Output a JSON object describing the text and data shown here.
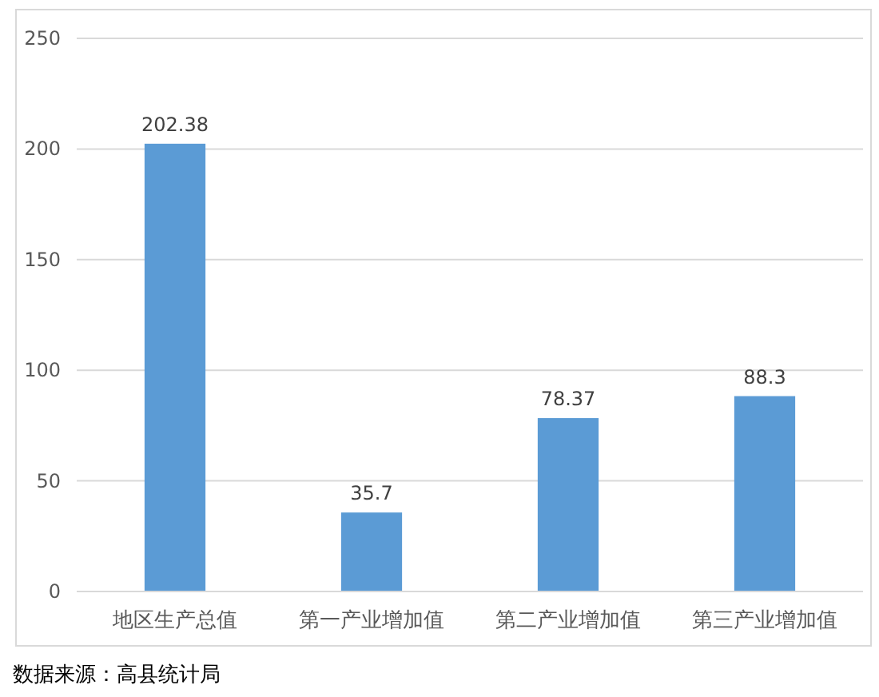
{
  "chart_data": {
    "type": "bar",
    "categories": [
      "地区生产总值",
      "第一产业增加值",
      "第二产业增加值",
      "第三产业增加值"
    ],
    "values": [
      202.38,
      35.7,
      78.37,
      88.3
    ],
    "color": "#5b9bd5",
    "ylim": [
      0,
      250
    ],
    "yticks": [
      0,
      50,
      100,
      150,
      200,
      250
    ],
    "grid": "y",
    "data_labels": true,
    "annotations": [
      "数据来源：高县统计局"
    ]
  }
}
